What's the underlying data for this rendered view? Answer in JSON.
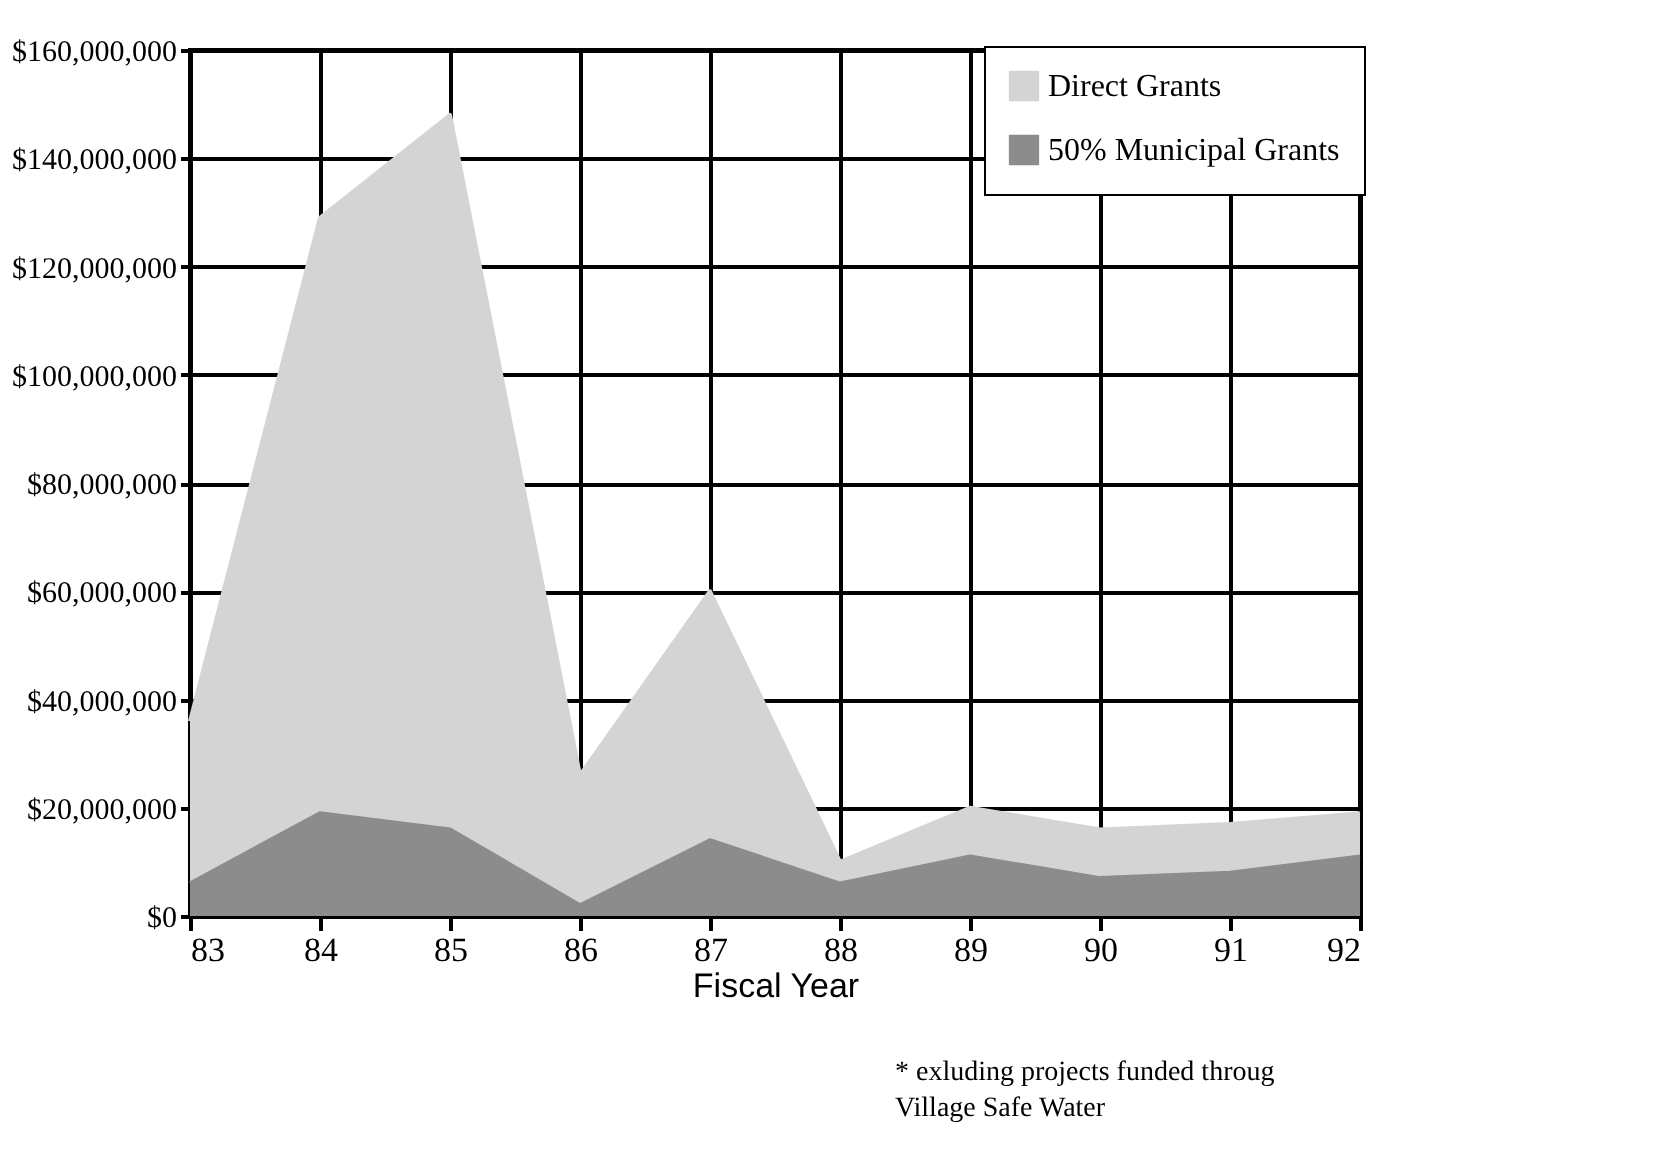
{
  "chart_data": {
    "type": "area",
    "stacked": true,
    "xlabel": "Fiscal Year",
    "categories": [
      "83",
      "84",
      "85",
      "86",
      "87",
      "88",
      "89",
      "90",
      "91",
      "92"
    ],
    "series": [
      {
        "name": "50% Municipal Grants",
        "color": "#8c8c8c",
        "values": [
          6000000,
          19000000,
          16000000,
          2000000,
          14000000,
          6000000,
          11000000,
          7000000,
          8000000,
          11000000
        ]
      },
      {
        "name": "Direct Grants",
        "color": "#d4d4d4",
        "values": [
          30000000,
          110000000,
          132000000,
          24000000,
          46000000,
          4000000,
          9000000,
          9000000,
          9000000,
          8000000
        ]
      }
    ],
    "ylim": [
      0,
      160000000
    ],
    "yticks": [
      {
        "value": 0,
        "label": "$0"
      },
      {
        "value": 20000000,
        "label": "$20,000,000"
      },
      {
        "value": 40000000,
        "label": "$40,000,000"
      },
      {
        "value": 60000000,
        "label": "$60,000,000"
      },
      {
        "value": 80000000,
        "label": "$80,000,000"
      },
      {
        "value": 100000000,
        "label": "$100,000,000"
      },
      {
        "value": 120000000,
        "label": "$120,000,000"
      },
      {
        "value": 140000000,
        "label": "$140,000,000"
      },
      {
        "value": 160000000,
        "label": "$160,000,000"
      }
    ],
    "grid": true,
    "legend": "top right",
    "annotations": [
      "* exluding projects funded throug",
      "Village Safe Water"
    ]
  }
}
